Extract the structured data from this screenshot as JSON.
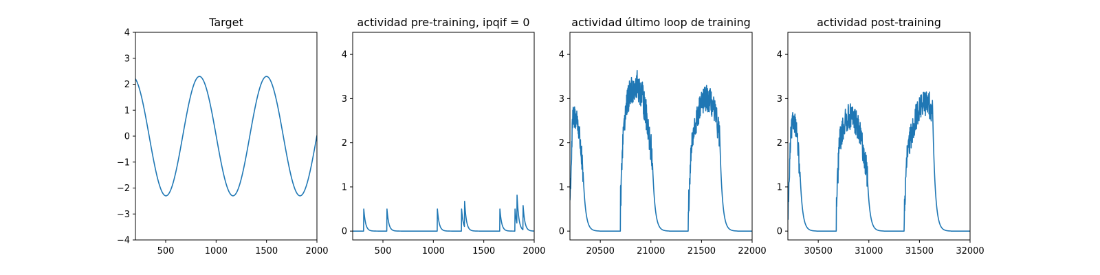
{
  "figure": {
    "background": "#ffffff",
    "line_color": "#1f77b4"
  },
  "chart_data": [
    {
      "type": "line",
      "title": "Target",
      "xlabel": "",
      "ylabel": "",
      "xlim": [
        200,
        2000
      ],
      "ylim": [
        -4,
        4
      ],
      "xticks": [
        500,
        1000,
        1500,
        2000
      ],
      "yticks": [
        -4,
        -3,
        -2,
        -1,
        0,
        1,
        2,
        3,
        4
      ],
      "series": [
        {
          "kind": "sinusoid",
          "amplitude": 2.3,
          "period": 665,
          "peak_at": 835,
          "x_start": 200,
          "x_end": 2000
        }
      ]
    },
    {
      "type": "line",
      "title": "actividad pre-training, ipqif = 0",
      "xlabel": "",
      "ylabel": "",
      "xlim": [
        200,
        2000
      ],
      "ylim": [
        -0.2,
        4.5
      ],
      "xticks": [
        500,
        1000,
        1500,
        2000
      ],
      "yticks": [
        0,
        1,
        2,
        3,
        4
      ],
      "series": [
        {
          "kind": "decaying_spikes",
          "x_start": 200,
          "x_end": 2000,
          "spike_times": [
            310,
            540,
            1040,
            1280,
            1310,
            1660,
            1810,
            1830,
            1890
          ],
          "spike_heights": [
            0.5,
            0.5,
            0.5,
            0.5,
            0.58,
            0.5,
            0.5,
            0.65,
            0.55
          ],
          "decay": 18
        }
      ]
    },
    {
      "type": "line",
      "title": "actividad último loop de training",
      "xlabel": "",
      "ylabel": "",
      "xlim": [
        20200,
        22000
      ],
      "ylim": [
        -0.2,
        4.5
      ],
      "xticks": [
        20500,
        21000,
        21500,
        22000
      ],
      "yticks": [
        0,
        1,
        2,
        3,
        4
      ],
      "series": [
        {
          "kind": "noisy_bursts",
          "x_start": 20200,
          "x_end": 22000,
          "bursts": [
            {
              "start": 20200,
              "end": 20330,
              "peak_center": 20250,
              "peak": 2.6,
              "noise": 0.3
            },
            {
              "start": 20700,
              "end": 21020,
              "peak_center": 20850,
              "peak": 3.3,
              "noise": 0.35
            },
            {
              "start": 21370,
              "end": 21680,
              "peak_center": 21550,
              "peak": 3.0,
              "noise": 0.3
            }
          ],
          "decay": 25
        }
      ]
    },
    {
      "type": "line",
      "title": "actividad post-training",
      "xlabel": "",
      "ylabel": "",
      "xlim": [
        30200,
        32000
      ],
      "ylim": [
        -0.2,
        4.5
      ],
      "xticks": [
        30500,
        31000,
        31500,
        32000
      ],
      "yticks": [
        0,
        1,
        2,
        3,
        4
      ],
      "series": [
        {
          "kind": "noisy_bursts",
          "x_start": 30200,
          "x_end": 32000,
          "bursts": [
            {
              "start": 30200,
              "end": 30320,
              "peak_center": 30260,
              "peak": 2.5,
              "noise": 0.25
            },
            {
              "start": 30680,
              "end": 30990,
              "peak_center": 30820,
              "peak": 2.6,
              "noise": 0.3
            },
            {
              "start": 31350,
              "end": 31630,
              "peak_center": 31560,
              "peak": 2.9,
              "noise": 0.3
            }
          ],
          "decay": 25
        }
      ]
    }
  ]
}
